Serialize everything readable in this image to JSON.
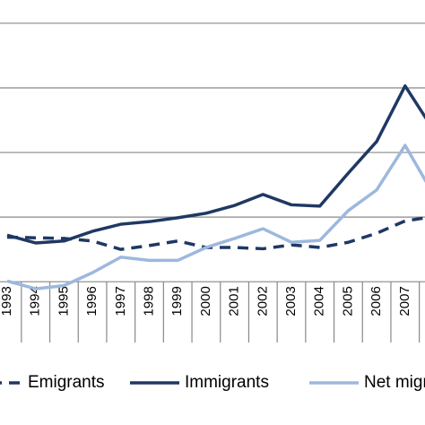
{
  "chart_data": {
    "type": "line",
    "categories": [
      "1993",
      "1994",
      "1995",
      "1996",
      "1997",
      "1998",
      "1999",
      "2000",
      "2001",
      "2002",
      "2003",
      "2004",
      "2005",
      "2006",
      "2007",
      null
    ],
    "series": [
      {
        "name": "Emigrants",
        "color": "#1f3864",
        "dashed": true,
        "values": [
          0.69,
          0.68,
          0.67,
          0.63,
          0.5,
          0.56,
          0.63,
          0.53,
          0.53,
          0.51,
          0.57,
          0.53,
          0.61,
          0.75,
          0.94,
          1.01
        ]
      },
      {
        "name": "Immigrants",
        "color": "#1f3864",
        "dashed": false,
        "values": [
          0.72,
          0.6,
          0.63,
          0.78,
          0.89,
          0.93,
          0.99,
          1.06,
          1.18,
          1.35,
          1.19,
          1.17,
          1.68,
          2.17,
          3.03,
          2.35
        ]
      },
      {
        "name": "Net migration",
        "color": "#9db8dd",
        "dashed": false,
        "values": [
          0.01,
          -0.11,
          -0.06,
          0.14,
          0.38,
          0.33,
          0.33,
          0.53,
          0.67,
          0.82,
          0.61,
          0.64,
          1.1,
          1.42,
          2.11,
          1.35
        ]
      }
    ],
    "ylim": [
      -0.15,
      4.36
    ],
    "yticks": [
      0,
      1,
      2,
      3,
      4
    ],
    "grid": true
  }
}
